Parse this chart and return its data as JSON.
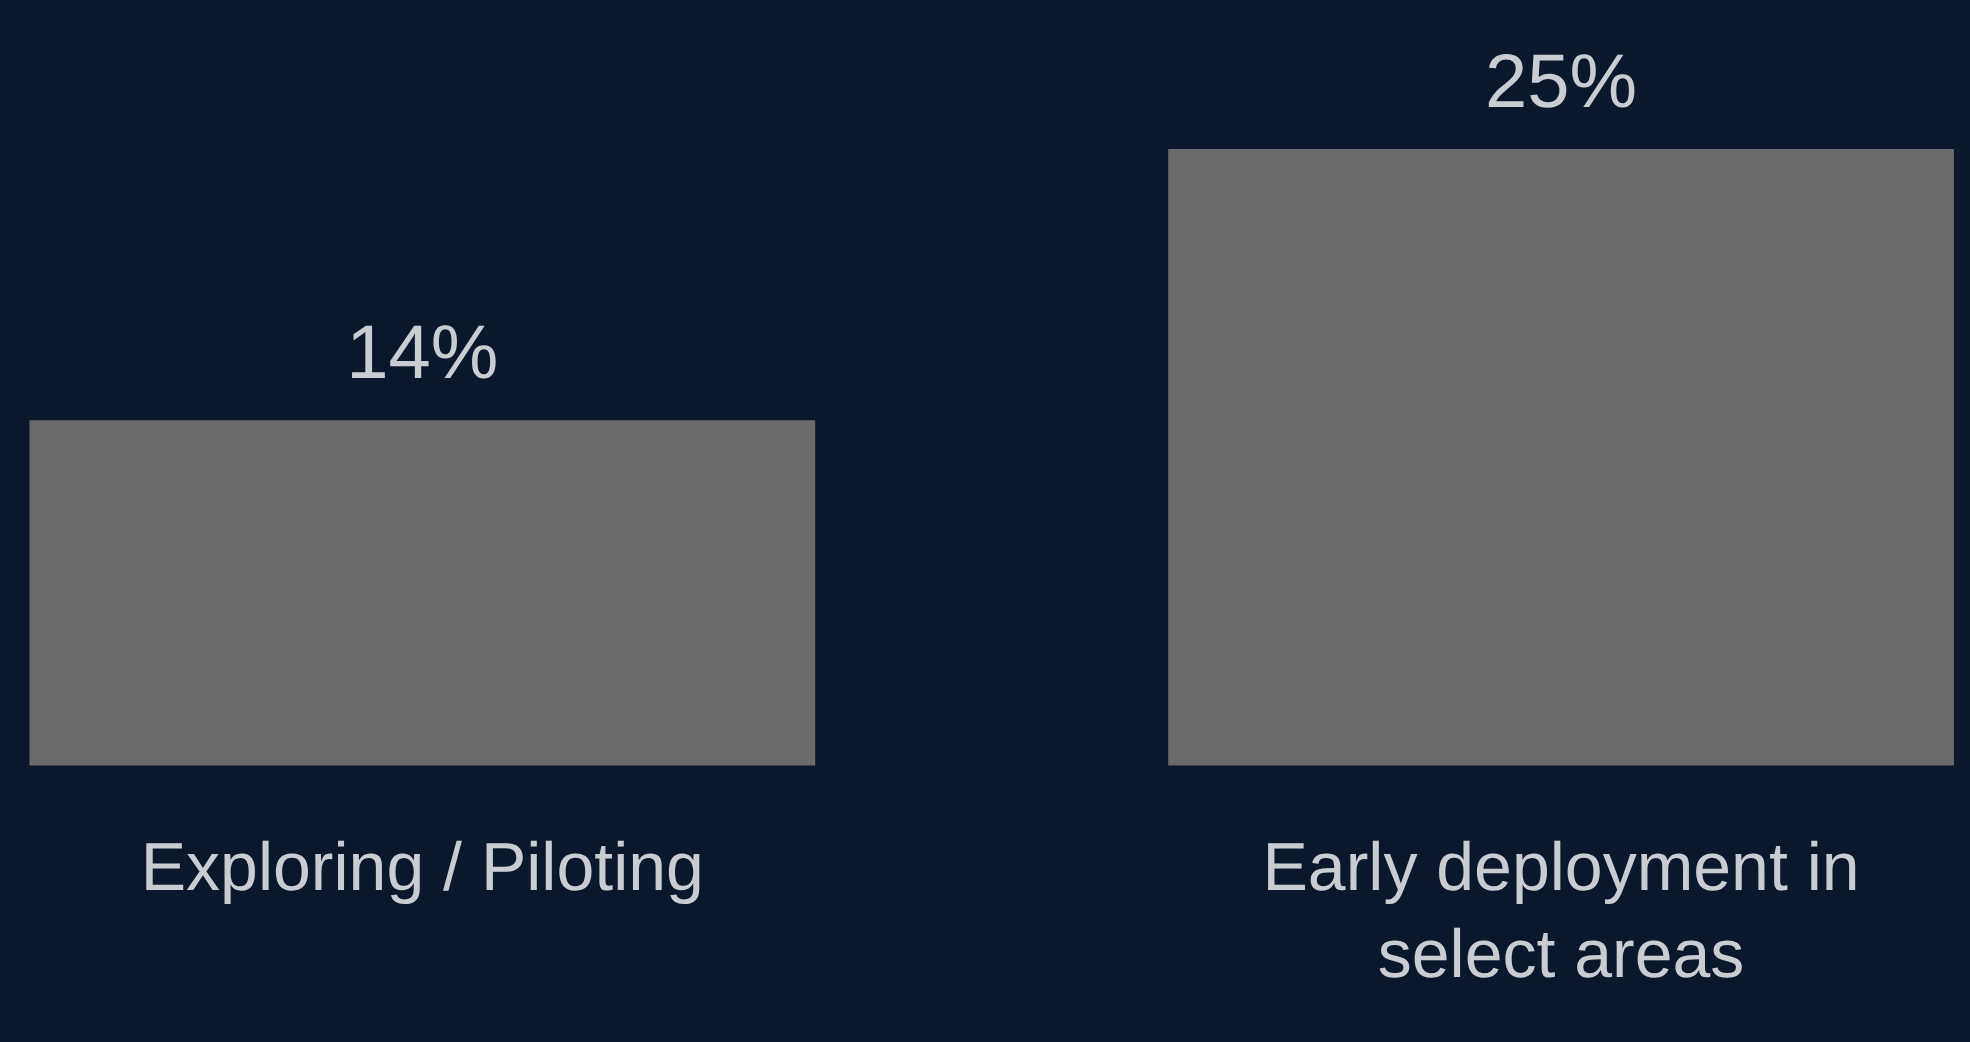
{
  "chart_data": {
    "type": "bar",
    "categories": [
      "Exploring / Piloting",
      "Early deployment in select areas"
    ],
    "values": [
      14,
      25
    ],
    "color": "#6b6b6b",
    "value_labels": [
      "14%",
      "25%"
    ],
    "grid": false
  }
}
